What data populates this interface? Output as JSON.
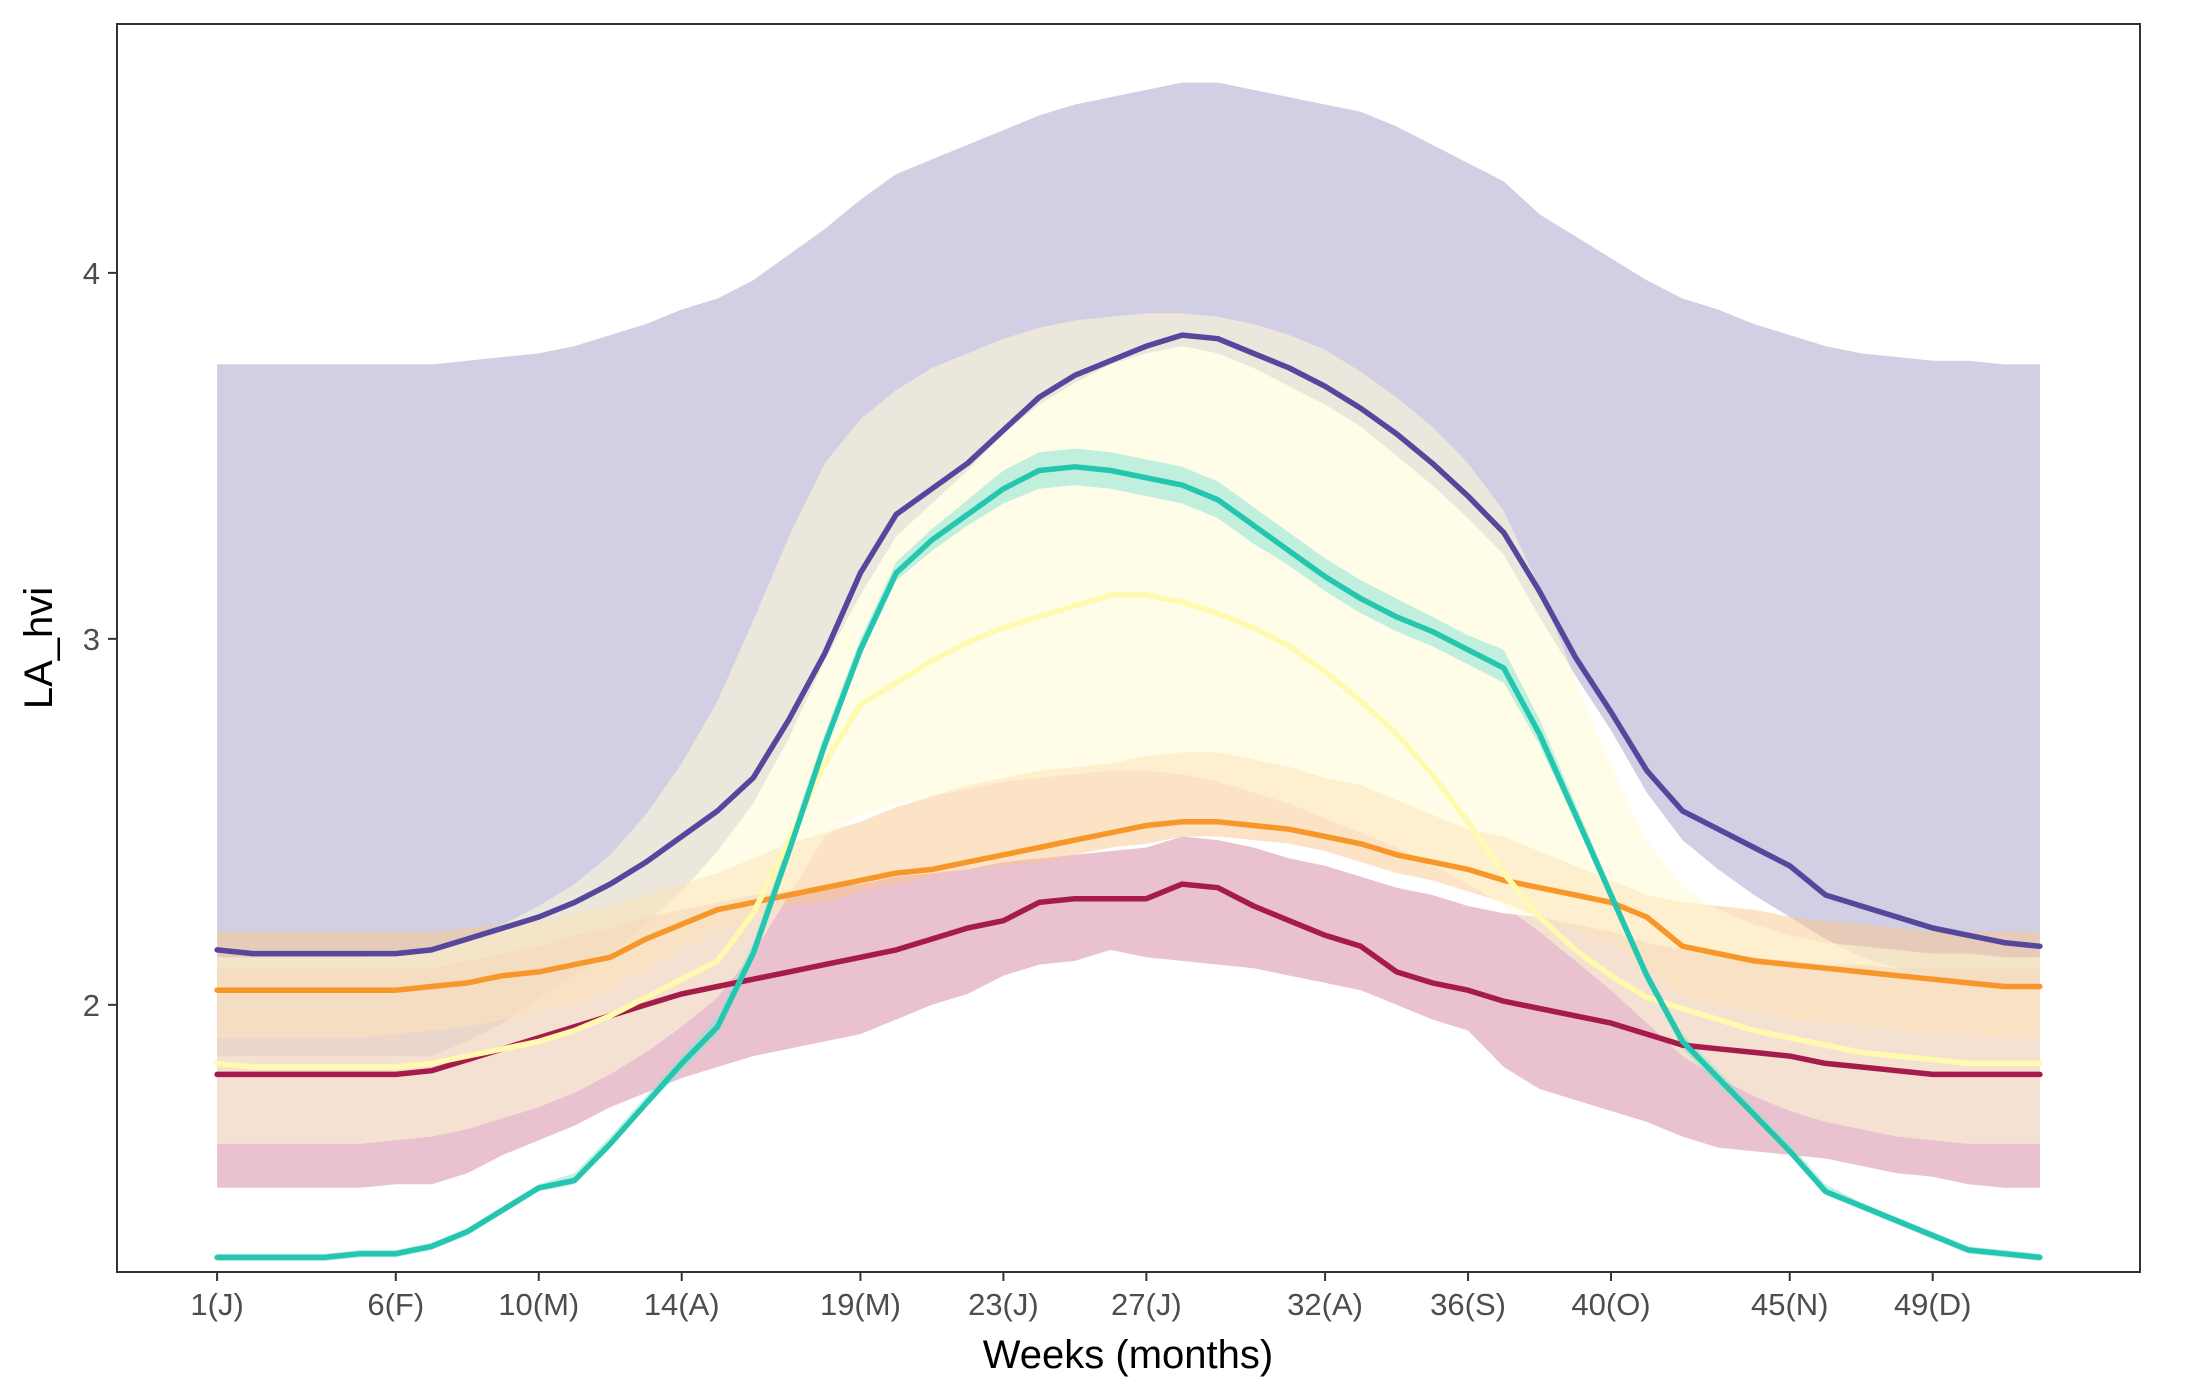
{
  "chart_data": {
    "type": "line",
    "title": "",
    "xlabel": "Weeks (months)",
    "ylabel": "LA_hvi",
    "xlim": [
      -1.8,
      54.8
    ],
    "ylim": [
      1.27,
      4.68
    ],
    "grid": false,
    "legend": "none",
    "x_ticks": [
      {
        "value": 1,
        "label": "1(J)"
      },
      {
        "value": 6,
        "label": "6(F)"
      },
      {
        "value": 10,
        "label": "10(M)"
      },
      {
        "value": 14,
        "label": "14(A)"
      },
      {
        "value": 19,
        "label": "19(M)"
      },
      {
        "value": 23,
        "label": "23(J)"
      },
      {
        "value": 27,
        "label": "27(J)"
      },
      {
        "value": 32,
        "label": "32(A)"
      },
      {
        "value": 36,
        "label": "36(S)"
      },
      {
        "value": 40,
        "label": "40(O)"
      },
      {
        "value": 45,
        "label": "45(N)"
      },
      {
        "value": 49,
        "label": "49(D)"
      }
    ],
    "y_ticks": [
      {
        "value": 2,
        "label": "2"
      },
      {
        "value": 3,
        "label": "3"
      },
      {
        "value": 4,
        "label": "4"
      }
    ],
    "series": [
      {
        "color": "#54479c",
        "band_color": "#a59ec9",
        "band_opacity": 0.5,
        "x": [
          1,
          2,
          3,
          4,
          5,
          6,
          7,
          8,
          9,
          10,
          11,
          12,
          13,
          14,
          15,
          16,
          17,
          18,
          19,
          20,
          21,
          22,
          23,
          24,
          25,
          26,
          27,
          28,
          29,
          30,
          31,
          32,
          33,
          34,
          35,
          36,
          37,
          38,
          39,
          40,
          41,
          42,
          43,
          44,
          45,
          46,
          47,
          48,
          49,
          50,
          51,
          52
        ],
        "y": [
          2.15,
          2.14,
          2.14,
          2.14,
          2.14,
          2.14,
          2.15,
          2.18,
          2.21,
          2.24,
          2.28,
          2.33,
          2.39,
          2.46,
          2.53,
          2.62,
          2.78,
          2.96,
          3.18,
          3.34,
          3.41,
          3.48,
          3.57,
          3.66,
          3.72,
          3.76,
          3.8,
          3.83,
          3.82,
          3.78,
          3.74,
          3.69,
          3.63,
          3.56,
          3.48,
          3.39,
          3.29,
          3.13,
          2.95,
          2.8,
          2.64,
          2.53,
          2.48,
          2.43,
          2.38,
          2.3,
          2.27,
          2.24,
          2.21,
          2.19,
          2.17,
          2.16
        ],
        "lower": [
          1.86,
          1.86,
          1.86,
          1.86,
          1.86,
          1.86,
          1.86,
          1.9,
          1.95,
          2.02,
          2.08,
          2.14,
          2.22,
          2.31,
          2.42,
          2.55,
          2.73,
          2.94,
          3.12,
          3.28,
          3.37,
          3.46,
          3.56,
          3.64,
          3.7,
          3.75,
          3.78,
          3.8,
          3.78,
          3.74,
          3.69,
          3.64,
          3.58,
          3.5,
          3.42,
          3.33,
          3.23,
          3.06,
          2.9,
          2.75,
          2.58,
          2.45,
          2.37,
          2.3,
          2.24,
          2.18,
          2.13,
          2.1,
          2.08,
          2.06,
          2.05,
          2.04
        ],
        "upper": [
          3.75,
          3.75,
          3.75,
          3.75,
          3.75,
          3.75,
          3.75,
          3.76,
          3.77,
          3.78,
          3.8,
          3.83,
          3.86,
          3.9,
          3.93,
          3.98,
          4.05,
          4.12,
          4.2,
          4.27,
          4.31,
          4.35,
          4.39,
          4.43,
          4.46,
          4.48,
          4.5,
          4.52,
          4.52,
          4.5,
          4.48,
          4.46,
          4.44,
          4.4,
          4.35,
          4.3,
          4.25,
          4.16,
          4.1,
          4.04,
          3.98,
          3.93,
          3.9,
          3.86,
          3.83,
          3.8,
          3.78,
          3.77,
          3.76,
          3.76,
          3.75,
          3.75
        ]
      },
      {
        "color": "#a51c4a",
        "band_color": "#d4839f",
        "band_opacity": 0.5,
        "x": [
          1,
          2,
          3,
          4,
          5,
          6,
          7,
          8,
          9,
          10,
          11,
          12,
          13,
          14,
          15,
          16,
          17,
          18,
          19,
          20,
          21,
          22,
          23,
          24,
          25,
          26,
          27,
          28,
          29,
          30,
          31,
          32,
          33,
          34,
          35,
          36,
          37,
          38,
          39,
          40,
          41,
          42,
          43,
          44,
          45,
          46,
          47,
          48,
          49,
          50,
          51,
          52
        ],
        "y": [
          1.81,
          1.81,
          1.81,
          1.81,
          1.81,
          1.81,
          1.82,
          1.85,
          1.88,
          1.91,
          1.94,
          1.97,
          2.0,
          2.03,
          2.05,
          2.07,
          2.09,
          2.11,
          2.13,
          2.15,
          2.18,
          2.21,
          2.23,
          2.28,
          2.29,
          2.29,
          2.29,
          2.33,
          2.32,
          2.27,
          2.23,
          2.19,
          2.16,
          2.09,
          2.06,
          2.04,
          2.01,
          1.99,
          1.97,
          1.95,
          1.92,
          1.89,
          1.88,
          1.87,
          1.86,
          1.84,
          1.83,
          1.82,
          1.81,
          1.81,
          1.81,
          1.81
        ],
        "lower": [
          1.5,
          1.5,
          1.5,
          1.5,
          1.5,
          1.51,
          1.51,
          1.54,
          1.59,
          1.63,
          1.67,
          1.72,
          1.76,
          1.8,
          1.83,
          1.86,
          1.88,
          1.9,
          1.92,
          1.96,
          2.0,
          2.03,
          2.08,
          2.11,
          2.12,
          2.15,
          2.13,
          2.12,
          2.11,
          2.1,
          2.08,
          2.06,
          2.04,
          2.0,
          1.96,
          1.93,
          1.83,
          1.77,
          1.74,
          1.71,
          1.68,
          1.64,
          1.61,
          1.6,
          1.59,
          1.58,
          1.56,
          1.54,
          1.53,
          1.51,
          1.5,
          1.5
        ],
        "upper": [
          2.1,
          2.1,
          2.1,
          2.1,
          2.1,
          2.1,
          2.1,
          2.12,
          2.14,
          2.16,
          2.19,
          2.21,
          2.24,
          2.26,
          2.28,
          2.3,
          2.31,
          2.32,
          2.33,
          2.35,
          2.36,
          2.37,
          2.39,
          2.4,
          2.41,
          2.42,
          2.43,
          2.46,
          2.45,
          2.43,
          2.4,
          2.38,
          2.35,
          2.32,
          2.3,
          2.27,
          2.25,
          2.24,
          2.22,
          2.2,
          2.17,
          2.15,
          2.14,
          2.13,
          2.12,
          2.11,
          2.11,
          2.1,
          2.1,
          2.1,
          2.1,
          2.1
        ]
      },
      {
        "color": "#f7972a",
        "band_color": "#fbc78e",
        "band_opacity": 0.5,
        "x": [
          1,
          2,
          3,
          4,
          5,
          6,
          7,
          8,
          9,
          10,
          11,
          12,
          13,
          14,
          15,
          16,
          17,
          18,
          19,
          20,
          21,
          22,
          23,
          24,
          25,
          26,
          27,
          28,
          29,
          30,
          31,
          32,
          33,
          34,
          35,
          36,
          37,
          38,
          39,
          40,
          41,
          42,
          43,
          44,
          45,
          46,
          47,
          48,
          49,
          50,
          51,
          52
        ],
        "y": [
          2.04,
          2.04,
          2.04,
          2.04,
          2.04,
          2.04,
          2.05,
          2.06,
          2.08,
          2.09,
          2.11,
          2.13,
          2.18,
          2.22,
          2.26,
          2.28,
          2.3,
          2.32,
          2.34,
          2.36,
          2.37,
          2.39,
          2.41,
          2.43,
          2.45,
          2.47,
          2.49,
          2.5,
          2.5,
          2.49,
          2.48,
          2.46,
          2.44,
          2.41,
          2.39,
          2.37,
          2.34,
          2.32,
          2.3,
          2.28,
          2.24,
          2.16,
          2.14,
          2.12,
          2.11,
          2.1,
          2.09,
          2.08,
          2.07,
          2.06,
          2.05,
          2.05
        ],
        "lower": [
          1.91,
          1.91,
          1.91,
          1.91,
          1.91,
          1.92,
          1.93,
          1.94,
          1.96,
          1.98,
          2.0,
          2.04,
          2.1,
          2.15,
          2.2,
          2.24,
          2.27,
          2.28,
          2.31,
          2.33,
          2.35,
          2.37,
          2.38,
          2.39,
          2.41,
          2.43,
          2.44,
          2.46,
          2.46,
          2.45,
          2.44,
          2.42,
          2.39,
          2.36,
          2.34,
          2.31,
          2.28,
          2.24,
          2.2,
          2.17,
          2.1,
          2.02,
          2.0,
          1.98,
          1.96,
          1.95,
          1.94,
          1.93,
          1.92,
          1.92,
          1.91,
          1.91
        ],
        "upper": [
          2.2,
          2.2,
          2.2,
          2.2,
          2.2,
          2.2,
          2.2,
          2.21,
          2.22,
          2.23,
          2.25,
          2.27,
          2.3,
          2.33,
          2.36,
          2.4,
          2.44,
          2.47,
          2.5,
          2.54,
          2.57,
          2.6,
          2.62,
          2.64,
          2.65,
          2.66,
          2.68,
          2.69,
          2.69,
          2.67,
          2.65,
          2.62,
          2.6,
          2.56,
          2.52,
          2.48,
          2.46,
          2.42,
          2.38,
          2.34,
          2.3,
          2.28,
          2.27,
          2.26,
          2.24,
          2.23,
          2.22,
          2.21,
          2.2,
          2.2,
          2.2,
          2.2
        ]
      },
      {
        "color": "#fffab0",
        "band_color": "#fffbd6",
        "band_opacity": 0.55,
        "x": [
          1,
          2,
          3,
          4,
          5,
          6,
          7,
          8,
          9,
          10,
          11,
          12,
          13,
          14,
          15,
          16,
          17,
          18,
          19,
          20,
          21,
          22,
          23,
          24,
          25,
          26,
          27,
          28,
          29,
          30,
          31,
          32,
          33,
          34,
          35,
          36,
          37,
          38,
          39,
          40,
          41,
          42,
          43,
          44,
          45,
          46,
          47,
          48,
          49,
          50,
          51,
          52
        ],
        "y": [
          1.84,
          1.83,
          1.83,
          1.83,
          1.83,
          1.83,
          1.84,
          1.86,
          1.88,
          1.9,
          1.93,
          1.97,
          2.02,
          2.07,
          2.12,
          2.25,
          2.45,
          2.66,
          2.82,
          2.88,
          2.94,
          2.99,
          3.03,
          3.06,
          3.09,
          3.12,
          3.12,
          3.1,
          3.07,
          3.03,
          2.98,
          2.91,
          2.83,
          2.74,
          2.63,
          2.5,
          2.36,
          2.24,
          2.15,
          2.08,
          2.02,
          1.99,
          1.96,
          1.93,
          1.91,
          1.89,
          1.87,
          1.86,
          1.85,
          1.84,
          1.84,
          1.84
        ],
        "lower": [
          1.62,
          1.62,
          1.62,
          1.62,
          1.62,
          1.63,
          1.64,
          1.66,
          1.69,
          1.72,
          1.76,
          1.81,
          1.87,
          1.94,
          2.02,
          2.14,
          2.3,
          2.46,
          2.52,
          2.55,
          2.57,
          2.59,
          2.61,
          2.62,
          2.63,
          2.64,
          2.64,
          2.63,
          2.61,
          2.58,
          2.55,
          2.51,
          2.47,
          2.43,
          2.38,
          2.33,
          2.27,
          2.2,
          2.12,
          2.04,
          1.95,
          1.86,
          1.8,
          1.75,
          1.71,
          1.68,
          1.66,
          1.64,
          1.63,
          1.62,
          1.62,
          1.62
        ],
        "upper": [
          2.13,
          2.13,
          2.13,
          2.13,
          2.13,
          2.14,
          2.15,
          2.18,
          2.22,
          2.27,
          2.33,
          2.41,
          2.52,
          2.66,
          2.83,
          3.05,
          3.28,
          3.48,
          3.6,
          3.68,
          3.74,
          3.78,
          3.82,
          3.85,
          3.87,
          3.88,
          3.89,
          3.89,
          3.88,
          3.86,
          3.83,
          3.79,
          3.73,
          3.66,
          3.58,
          3.48,
          3.35,
          3.14,
          2.89,
          2.65,
          2.45,
          2.32,
          2.26,
          2.22,
          2.19,
          2.17,
          2.16,
          2.15,
          2.14,
          2.14,
          2.13,
          2.13
        ]
      },
      {
        "color": "#24c6b0",
        "band_color": "#8ee3d4",
        "band_opacity": 0.55,
        "x": [
          1,
          2,
          3,
          4,
          5,
          6,
          7,
          8,
          9,
          10,
          11,
          12,
          13,
          14,
          15,
          16,
          17,
          18,
          19,
          20,
          21,
          22,
          23,
          24,
          25,
          26,
          27,
          28,
          29,
          30,
          31,
          32,
          33,
          34,
          35,
          36,
          37,
          38,
          39,
          40,
          41,
          42,
          43,
          44,
          45,
          46,
          47,
          48,
          49,
          50,
          51,
          52
        ],
        "y": [
          1.31,
          1.31,
          1.31,
          1.31,
          1.32,
          1.32,
          1.34,
          1.38,
          1.44,
          1.5,
          1.52,
          1.62,
          1.73,
          1.84,
          1.94,
          2.14,
          2.42,
          2.71,
          2.97,
          3.18,
          3.27,
          3.34,
          3.41,
          3.46,
          3.47,
          3.46,
          3.44,
          3.42,
          3.38,
          3.31,
          3.24,
          3.17,
          3.11,
          3.06,
          3.02,
          2.97,
          2.92,
          2.74,
          2.52,
          2.3,
          2.08,
          1.9,
          1.8,
          1.7,
          1.6,
          1.49,
          1.45,
          1.41,
          1.37,
          1.33,
          1.32,
          1.31
        ],
        "lower": [
          1.3,
          1.3,
          1.3,
          1.3,
          1.31,
          1.31,
          1.33,
          1.37,
          1.43,
          1.49,
          1.51,
          1.61,
          1.72,
          1.82,
          1.92,
          2.12,
          2.4,
          2.69,
          2.95,
          3.16,
          3.24,
          3.31,
          3.37,
          3.41,
          3.42,
          3.41,
          3.39,
          3.37,
          3.33,
          3.26,
          3.2,
          3.13,
          3.07,
          3.02,
          2.98,
          2.93,
          2.88,
          2.71,
          2.5,
          2.28,
          2.06,
          1.88,
          1.78,
          1.69,
          1.59,
          1.48,
          1.44,
          1.4,
          1.36,
          1.32,
          1.31,
          1.3
        ],
        "upper": [
          1.32,
          1.32,
          1.32,
          1.32,
          1.33,
          1.33,
          1.35,
          1.39,
          1.45,
          1.51,
          1.54,
          1.64,
          1.75,
          1.86,
          1.97,
          2.17,
          2.45,
          2.74,
          3.0,
          3.21,
          3.3,
          3.38,
          3.46,
          3.51,
          3.52,
          3.51,
          3.49,
          3.47,
          3.43,
          3.36,
          3.29,
          3.22,
          3.16,
          3.11,
          3.06,
          3.01,
          2.97,
          2.78,
          2.55,
          2.32,
          2.1,
          1.92,
          1.82,
          1.72,
          1.62,
          1.51,
          1.46,
          1.42,
          1.38,
          1.34,
          1.33,
          1.32
        ]
      }
    ]
  }
}
